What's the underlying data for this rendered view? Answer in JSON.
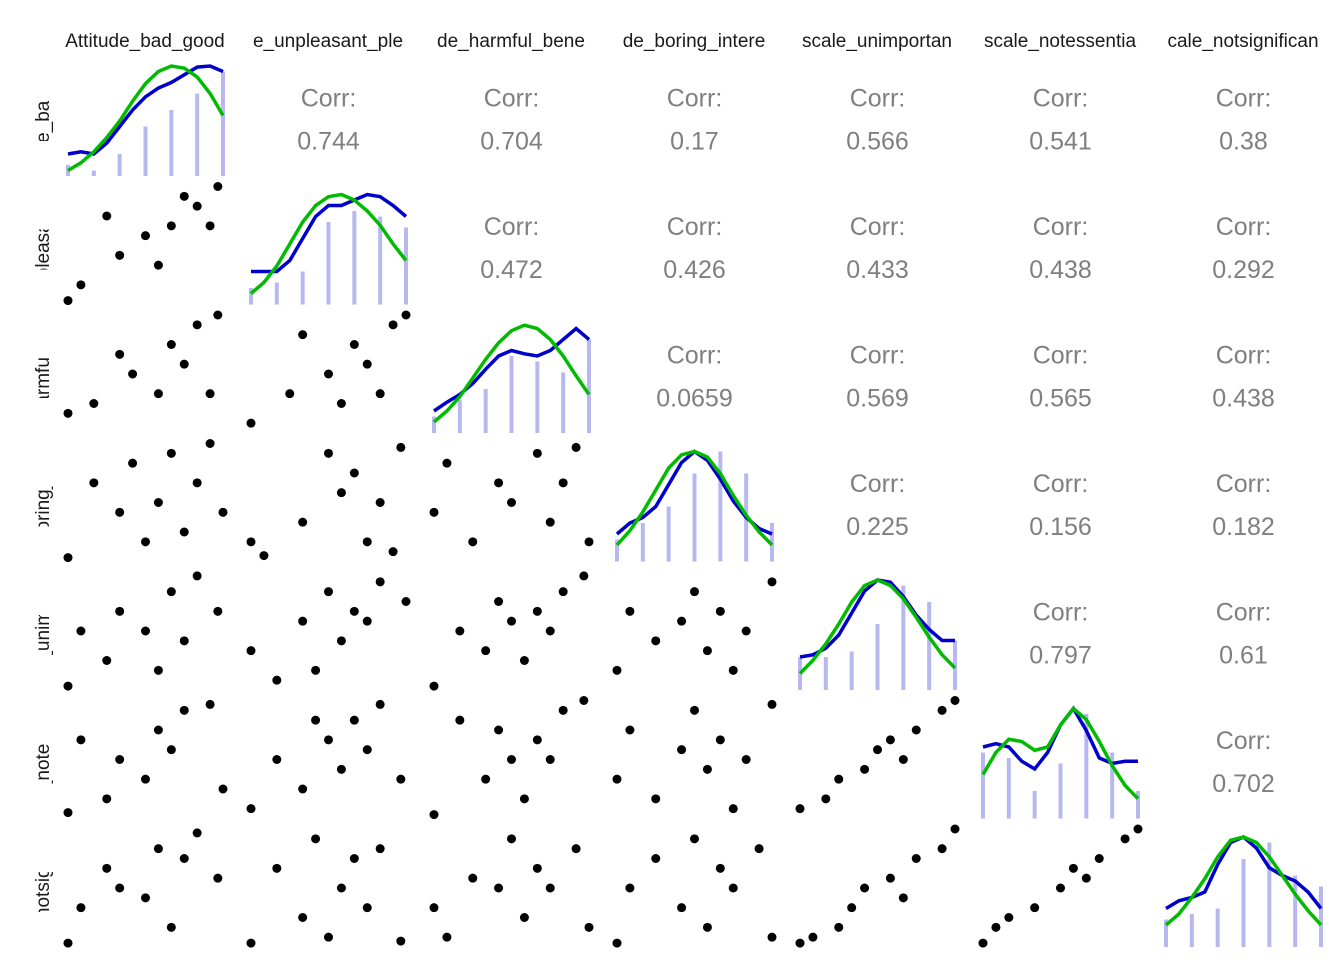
{
  "chart_data": {
    "type": "pairs",
    "variables": [
      "Attitude_bad_good",
      "e_unpleasant_ple",
      "de_harmful_bene",
      "de_boring_intere",
      "scale_unimportan",
      "scale_notessentia",
      "cale_notsignifican"
    ],
    "corr_label": "Corr:",
    "corr": [
      [
        0.744,
        0.704,
        0.17,
        0.566,
        0.541,
        0.38
      ],
      [
        0.472,
        0.426,
        0.433,
        0.438,
        0.292
      ],
      [
        0.0659,
        0.569,
        0.565,
        0.438
      ],
      [
        0.225,
        0.156,
        0.182
      ],
      [
        0.797,
        0.61
      ],
      [
        0.702
      ]
    ],
    "lim": [
      1,
      7
    ],
    "diag_ylim": [
      0,
      1
    ],
    "density_x": [
      1,
      1.5,
      2,
      2.5,
      3,
      3.5,
      4,
      4.5,
      5,
      5.5,
      6,
      6.5,
      7
    ],
    "hist_x": [
      1,
      2,
      3,
      4,
      5,
      6,
      7
    ],
    "hist_color": "#b8b8f0",
    "density_color": "#0000cc",
    "normal_color": "#00bb00",
    "point_color": "#000000",
    "diagonal": [
      {
        "hist": [
          0.1,
          0.05,
          0.2,
          0.45,
          0.6,
          0.75,
          0.95
        ],
        "density": [
          0.2,
          0.22,
          0.2,
          0.3,
          0.45,
          0.6,
          0.72,
          0.8,
          0.85,
          0.92,
          0.99,
          1,
          0.95
        ],
        "normal": [
          0.05,
          0.12,
          0.22,
          0.35,
          0.5,
          0.68,
          0.84,
          0.95,
          1,
          0.98,
          0.9,
          0.75,
          0.55
        ]
      },
      {
        "hist": [
          0.15,
          0.2,
          0.3,
          0.75,
          0.85,
          0.8,
          0.7
        ],
        "density": [
          0.3,
          0.3,
          0.3,
          0.4,
          0.6,
          0.8,
          0.9,
          0.9,
          0.95,
          1,
          0.98,
          0.9,
          0.8
        ],
        "normal": [
          0.1,
          0.2,
          0.35,
          0.55,
          0.75,
          0.9,
          0.98,
          1,
          0.95,
          0.85,
          0.72,
          0.55,
          0.4
        ]
      },
      {
        "hist": [
          0.15,
          0.3,
          0.4,
          0.7,
          0.65,
          0.55,
          0.85
        ],
        "density": [
          0.2,
          0.28,
          0.35,
          0.45,
          0.58,
          0.7,
          0.75,
          0.72,
          0.7,
          0.75,
          0.85,
          0.95,
          0.85
        ],
        "normal": [
          0.1,
          0.2,
          0.33,
          0.5,
          0.67,
          0.82,
          0.93,
          0.98,
          0.95,
          0.85,
          0.7,
          0.52,
          0.35
        ]
      },
      {
        "hist": [
          0.2,
          0.35,
          0.5,
          0.8,
          1,
          0.8,
          0.35
        ],
        "density": [
          0.25,
          0.35,
          0.4,
          0.5,
          0.7,
          0.9,
          1,
          0.92,
          0.75,
          0.55,
          0.4,
          0.3,
          0.25
        ],
        "normal": [
          0.15,
          0.28,
          0.45,
          0.65,
          0.85,
          0.97,
          1,
          0.95,
          0.8,
          0.6,
          0.42,
          0.27,
          0.15
        ]
      },
      {
        "hist": [
          0.3,
          0.3,
          0.35,
          0.6,
          0.95,
          0.8,
          0.45
        ],
        "density": [
          0.3,
          0.32,
          0.38,
          0.5,
          0.7,
          0.9,
          1,
          0.98,
          0.85,
          0.68,
          0.55,
          0.45,
          0.45
        ],
        "normal": [
          0.15,
          0.27,
          0.42,
          0.6,
          0.8,
          0.95,
          1,
          0.95,
          0.83,
          0.66,
          0.48,
          0.32,
          0.2
        ]
      },
      {
        "hist": [
          0.6,
          0.55,
          0.25,
          0.5,
          0.95,
          0.6,
          0.25
        ],
        "density": [
          0.65,
          0.68,
          0.65,
          0.52,
          0.45,
          0.6,
          0.85,
          1,
          0.8,
          0.55,
          0.5,
          0.52,
          0.52
        ],
        "normal": [
          0.4,
          0.6,
          0.72,
          0.7,
          0.62,
          0.65,
          0.85,
          1,
          0.9,
          0.7,
          0.48,
          0.3,
          0.18
        ]
      },
      {
        "hist": [
          0.25,
          0.3,
          0.35,
          0.8,
          0.95,
          0.65,
          0.55
        ],
        "density": [
          0.35,
          0.42,
          0.45,
          0.5,
          0.75,
          0.95,
          1,
          0.9,
          0.72,
          0.65,
          0.6,
          0.5,
          0.35
        ],
        "normal": [
          0.2,
          0.3,
          0.45,
          0.62,
          0.82,
          0.97,
          1,
          0.95,
          0.82,
          0.65,
          0.48,
          0.33,
          0.2
        ]
      }
    ],
    "scatter": [
      [
        [
          [
            1,
            1.2
          ],
          [
            1.5,
            2
          ],
          [
            3,
            3.5
          ],
          [
            2.5,
            5.5
          ],
          [
            4,
            4.5
          ],
          [
            5,
            5
          ],
          [
            5.5,
            6.5
          ],
          [
            6,
            6
          ],
          [
            6.8,
            7
          ],
          [
            6.5,
            5
          ],
          [
            4.5,
            3
          ]
        ]
      ],
      [
        [
          [
            1,
            2
          ],
          [
            2,
            2.5
          ],
          [
            3.5,
            4
          ],
          [
            4.5,
            3
          ],
          [
            5,
            5.5
          ],
          [
            5.5,
            4.5
          ],
          [
            6,
            6.5
          ],
          [
            6.8,
            7
          ],
          [
            6.5,
            3
          ],
          [
            3,
            5
          ]
        ],
        [
          [
            1,
            1.5
          ],
          [
            2.5,
            3
          ],
          [
            3,
            6
          ],
          [
            4,
            4
          ],
          [
            4.5,
            2.5
          ],
          [
            5,
            5.5
          ],
          [
            5.5,
            4.5
          ],
          [
            6.5,
            6.5
          ],
          [
            7,
            7
          ],
          [
            6,
            3
          ]
        ]
      ],
      [
        [
          [
            1,
            1.2
          ],
          [
            2,
            5
          ],
          [
            3,
            3.5
          ],
          [
            3.5,
            6
          ],
          [
            4.5,
            4
          ],
          [
            5,
            6.5
          ],
          [
            5.5,
            2.5
          ],
          [
            6,
            5
          ],
          [
            6.5,
            7
          ],
          [
            7,
            3.5
          ],
          [
            4,
            2
          ]
        ],
        [
          [
            1,
            2
          ],
          [
            1.5,
            1.3
          ],
          [
            3,
            3
          ],
          [
            4,
            6.5
          ],
          [
            4.5,
            4.5
          ],
          [
            5,
            5.5
          ],
          [
            5.5,
            2
          ],
          [
            6,
            4
          ],
          [
            6.8,
            6.8
          ],
          [
            6.5,
            1.5
          ]
        ],
        [
          [
            1,
            3.5
          ],
          [
            1.5,
            6
          ],
          [
            2.5,
            2
          ],
          [
            3.5,
            5
          ],
          [
            4,
            4
          ],
          [
            5,
            6.5
          ],
          [
            5.5,
            3
          ],
          [
            6,
            5
          ],
          [
            7,
            2
          ],
          [
            6.5,
            6.8
          ]
        ]
      ],
      [
        [
          [
            1,
            1.2
          ],
          [
            1.5,
            4
          ],
          [
            2.5,
            2.5
          ],
          [
            3,
            5
          ],
          [
            4,
            4
          ],
          [
            5,
            6
          ],
          [
            5.5,
            3.5
          ],
          [
            6,
            6.8
          ],
          [
            6.8,
            5
          ],
          [
            4.5,
            2
          ]
        ],
        [
          [
            1,
            3
          ],
          [
            2,
            1.5
          ],
          [
            3,
            4.5
          ],
          [
            4,
            6
          ],
          [
            4.5,
            3.5
          ],
          [
            5,
            5
          ],
          [
            5.5,
            4.5
          ],
          [
            6,
            6.5
          ],
          [
            7,
            5.5
          ],
          [
            3.5,
            2
          ]
        ],
        [
          [
            1,
            1.2
          ],
          [
            2,
            4
          ],
          [
            3,
            3
          ],
          [
            4,
            4.5
          ],
          [
            4.5,
            2.5
          ],
          [
            5,
            5
          ],
          [
            5.5,
            4
          ],
          [
            6,
            6
          ],
          [
            6.8,
            6.8
          ],
          [
            3.5,
            5.5
          ]
        ],
        [
          [
            1,
            2
          ],
          [
            1.5,
            5
          ],
          [
            2.5,
            3.5
          ],
          [
            3.5,
            4.5
          ],
          [
            4,
            6
          ],
          [
            4.5,
            3
          ],
          [
            5,
            5
          ],
          [
            5.5,
            2
          ],
          [
            6,
            4
          ],
          [
            7,
            6.5
          ]
        ]
      ],
      [
        [
          [
            1,
            1.3
          ],
          [
            1.5,
            5
          ],
          [
            2.5,
            2
          ],
          [
            3,
            4
          ],
          [
            4,
            3
          ],
          [
            4.5,
            5.5
          ],
          [
            5,
            4.5
          ],
          [
            5.5,
            6.5
          ],
          [
            6.5,
            6.8
          ],
          [
            7,
            2.5
          ]
        ],
        [
          [
            1,
            1.5
          ],
          [
            2,
            4
          ],
          [
            3,
            2.5
          ],
          [
            4,
            5
          ],
          [
            4.5,
            3.5
          ],
          [
            5,
            6
          ],
          [
            5.5,
            4.5
          ],
          [
            6,
            6.8
          ],
          [
            6.8,
            3
          ],
          [
            3.5,
            6
          ]
        ],
        [
          [
            1,
            1.2
          ],
          [
            2,
            6
          ],
          [
            3,
            3
          ],
          [
            4,
            4
          ],
          [
            4.5,
            2
          ],
          [
            5,
            5
          ],
          [
            5.5,
            4
          ],
          [
            6,
            6.5
          ],
          [
            6.8,
            7
          ],
          [
            3.5,
            5.5
          ]
        ],
        [
          [
            1,
            3
          ],
          [
            1.5,
            5.5
          ],
          [
            2.5,
            2
          ],
          [
            3.5,
            4.5
          ],
          [
            4,
            6.5
          ],
          [
            4.5,
            3.5
          ],
          [
            5,
            5
          ],
          [
            5.5,
            1.5
          ],
          [
            6,
            4
          ],
          [
            7,
            6.8
          ]
        ],
        [
          [
            1,
            1.5
          ],
          [
            2,
            2
          ],
          [
            2.5,
            3
          ],
          [
            3.5,
            3.5
          ],
          [
            4,
            4.5
          ],
          [
            4.5,
            5
          ],
          [
            5,
            4
          ],
          [
            5.5,
            5.5
          ],
          [
            6.5,
            6.5
          ],
          [
            7,
            7
          ]
        ]
      ],
      [
        [
          [
            1,
            1.2
          ],
          [
            1.5,
            3
          ],
          [
            2.5,
            5
          ],
          [
            3,
            4
          ],
          [
            4,
            3.5
          ],
          [
            4.5,
            6
          ],
          [
            5,
            2
          ],
          [
            5.5,
            5.5
          ],
          [
            6,
            6.8
          ],
          [
            6.8,
            4.5
          ]
        ],
        [
          [
            1,
            1.2
          ],
          [
            2,
            5
          ],
          [
            3,
            2.5
          ],
          [
            3.5,
            6.5
          ],
          [
            4.5,
            4
          ],
          [
            5,
            5.5
          ],
          [
            5.5,
            3
          ],
          [
            6,
            6
          ],
          [
            6.8,
            1.3
          ],
          [
            4,
            1.5
          ]
        ],
        [
          [
            1,
            3
          ],
          [
            1.5,
            1.5
          ],
          [
            2.5,
            4.5
          ],
          [
            3.5,
            4
          ],
          [
            4,
            6.5
          ],
          [
            4.5,
            2.5
          ],
          [
            5,
            5
          ],
          [
            5.5,
            4
          ],
          [
            6.5,
            6
          ],
          [
            7,
            2
          ]
        ],
        [
          [
            1,
            1.2
          ],
          [
            1.5,
            4
          ],
          [
            2.5,
            5.5
          ],
          [
            3.5,
            3
          ],
          [
            4,
            6.5
          ],
          [
            4.5,
            2
          ],
          [
            5,
            5
          ],
          [
            5.5,
            4
          ],
          [
            6.5,
            6
          ],
          [
            7,
            1.5
          ]
        ],
        [
          [
            1,
            1.2
          ],
          [
            1.5,
            1.5
          ],
          [
            2.5,
            2
          ],
          [
            3,
            3
          ],
          [
            3.5,
            4
          ],
          [
            4.5,
            4.5
          ],
          [
            5,
            3.5
          ],
          [
            5.5,
            5.5
          ],
          [
            6.5,
            6
          ],
          [
            7,
            7
          ]
        ],
        [
          [
            1,
            1.2
          ],
          [
            1.5,
            2
          ],
          [
            2,
            2.5
          ],
          [
            3,
            3
          ],
          [
            4,
            4
          ],
          [
            4.5,
            5
          ],
          [
            5,
            4.5
          ],
          [
            5.5,
            5.5
          ],
          [
            6.5,
            6.5
          ],
          [
            7,
            7
          ]
        ]
      ]
    ]
  }
}
